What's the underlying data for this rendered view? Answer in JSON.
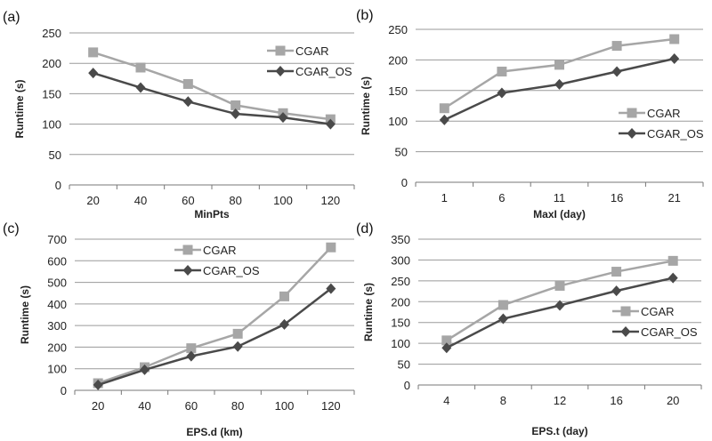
{
  "chart_data": [
    {
      "type": "line",
      "panel_label": "(a)",
      "xlabel": "MinPts",
      "ylabel": "Runtime (s)",
      "categories": [
        "20",
        "40",
        "60",
        "80",
        "100",
        "120"
      ],
      "ylim": [
        0,
        250
      ],
      "yticks": [
        0,
        50,
        100,
        150,
        200,
        250
      ],
      "legend": "top-right",
      "grid": true,
      "series": [
        {
          "name": "CGAR",
          "color": "#a6a6a6",
          "marker": "square",
          "values": [
            218,
            193,
            166,
            131,
            118,
            108
          ]
        },
        {
          "name": "CGAR_OS",
          "color": "#4a4a4a",
          "marker": "diamond",
          "values": [
            184,
            160,
            137,
            117,
            111,
            100
          ]
        }
      ]
    },
    {
      "type": "line",
      "panel_label": "(b)",
      "xlabel": "MaxI (day)",
      "ylabel": "Runtime  (s)",
      "categories": [
        "1",
        "6",
        "11",
        "16",
        "21"
      ],
      "ylim": [
        0,
        250
      ],
      "yticks": [
        0,
        50,
        100,
        150,
        200,
        250
      ],
      "legend": "right",
      "grid": true,
      "series": [
        {
          "name": "CGAR",
          "color": "#a6a6a6",
          "marker": "square",
          "values": [
            121,
            181,
            192,
            223,
            234
          ]
        },
        {
          "name": "CGAR_OS",
          "color": "#4a4a4a",
          "marker": "diamond",
          "values": [
            102,
            146,
            160,
            181,
            202
          ]
        }
      ]
    },
    {
      "type": "line",
      "panel_label": "(c)",
      "xlabel": "EPS.d  (km)",
      "ylabel": "Runtime  (s)",
      "categories": [
        "20",
        "40",
        "60",
        "80",
        "100",
        "120"
      ],
      "ylim": [
        0,
        700
      ],
      "yticks": [
        0,
        100,
        200,
        300,
        400,
        500,
        600,
        700
      ],
      "legend": "top-center",
      "grid": true,
      "series": [
        {
          "name": "CGAR",
          "color": "#a6a6a6",
          "marker": "square",
          "values": [
            33,
            107,
            195,
            262,
            435,
            662
          ]
        },
        {
          "name": "CGAR_OS",
          "color": "#4a4a4a",
          "marker": "diamond",
          "values": [
            25,
            95,
            158,
            203,
            305,
            471
          ]
        }
      ]
    },
    {
      "type": "line",
      "panel_label": "(d)",
      "xlabel": "EPS.t (day)",
      "ylabel": "Runtime  (s)",
      "categories": [
        "4",
        "8",
        "12",
        "16",
        "20"
      ],
      "ylim": [
        0,
        350
      ],
      "yticks": [
        0,
        50,
        100,
        150,
        200,
        250,
        300,
        350
      ],
      "legend": "right",
      "grid": true,
      "series": [
        {
          "name": "CGAR",
          "color": "#a6a6a6",
          "marker": "square",
          "values": [
            107,
            192,
            238,
            272,
            298
          ]
        },
        {
          "name": "CGAR_OS",
          "color": "#4a4a4a",
          "marker": "diamond",
          "values": [
            89,
            159,
            191,
            226,
            257
          ]
        }
      ]
    }
  ]
}
